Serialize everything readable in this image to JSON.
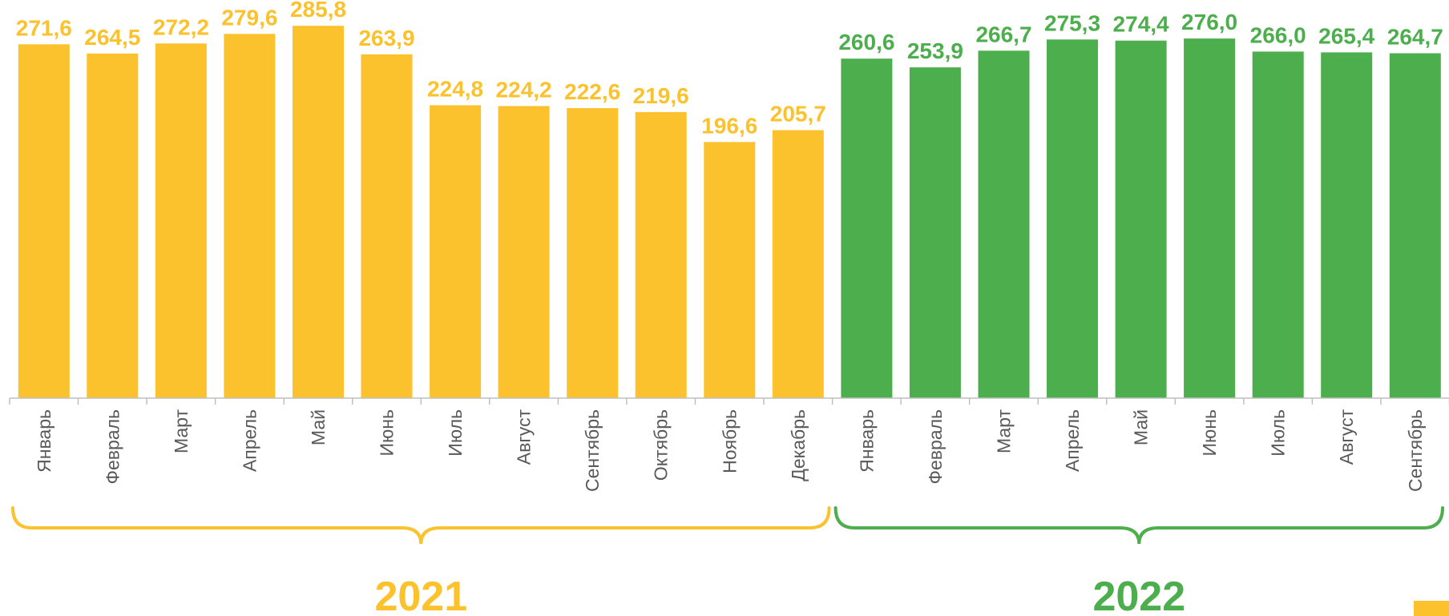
{
  "chart_data": {
    "type": "bar",
    "title": "",
    "xlabel": "",
    "ylabel": "",
    "ylim": [
      0,
      300
    ],
    "grid": false,
    "groups": [
      {
        "label": "2021",
        "color": "#FBC22D",
        "categories": [
          "Январь",
          "Февраль",
          "Март",
          "Апрель",
          "Май",
          "Июнь",
          "Июль",
          "Август",
          "Сентябрь",
          "Октябрь",
          "Ноябрь",
          "Декабрь"
        ],
        "values": [
          271.6,
          264.5,
          272.2,
          279.6,
          285.8,
          263.9,
          224.8,
          224.2,
          222.6,
          219.6,
          196.6,
          205.7
        ],
        "labels": [
          "271,6",
          "264,5",
          "272,2",
          "279,6",
          "285,8",
          "263,9",
          "224,8",
          "224,2",
          "222,6",
          "219,6",
          "196,6",
          "205,7"
        ]
      },
      {
        "label": "2022",
        "color": "#4CAE4C",
        "categories": [
          "Январь",
          "Февраль",
          "Март",
          "Апрель",
          "Май",
          "Июнь",
          "Июль",
          "Август",
          "Сентябрь"
        ],
        "values": [
          260.6,
          253.9,
          266.7,
          275.3,
          274.4,
          276.0,
          266.0,
          265.4,
          264.7
        ],
        "labels": [
          "260,6",
          "253,9",
          "266,7",
          "275,3",
          "274,4",
          "276,0",
          "266,0",
          "265,4",
          "264,7"
        ]
      }
    ]
  }
}
